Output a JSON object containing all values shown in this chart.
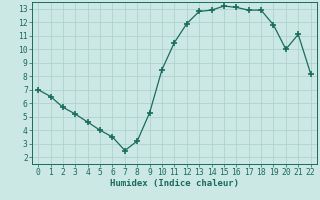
{
  "x": [
    0,
    1,
    2,
    3,
    4,
    5,
    6,
    7,
    8,
    9,
    10,
    11,
    12,
    13,
    14,
    15,
    16,
    17,
    18,
    19,
    20,
    21,
    22
  ],
  "y": [
    7,
    6.5,
    5.7,
    5.2,
    4.6,
    4.0,
    3.5,
    2.5,
    3.2,
    5.3,
    8.5,
    10.5,
    11.9,
    12.8,
    12.9,
    13.2,
    13.1,
    12.9,
    12.9,
    11.8,
    10.0,
    11.1,
    8.2
  ],
  "line_color": "#1a6b5e",
  "marker": "+",
  "marker_size": 4,
  "marker_lw": 1.2,
  "bg_color": "#cce8e4",
  "grid_color": "#aacfca",
  "xlabel": "Humidex (Indice chaleur)",
  "xlim": [
    -0.5,
    22.5
  ],
  "ylim": [
    1.5,
    13.5
  ],
  "xticks": [
    0,
    1,
    2,
    3,
    4,
    5,
    6,
    7,
    8,
    9,
    10,
    11,
    12,
    13,
    14,
    15,
    16,
    17,
    18,
    19,
    20,
    21,
    22
  ],
  "yticks": [
    2,
    3,
    4,
    5,
    6,
    7,
    8,
    9,
    10,
    11,
    12,
    13
  ],
  "tick_color": "#1a6b5e",
  "label_fontsize": 6.5,
  "tick_fontsize": 5.8,
  "linewidth": 0.9
}
